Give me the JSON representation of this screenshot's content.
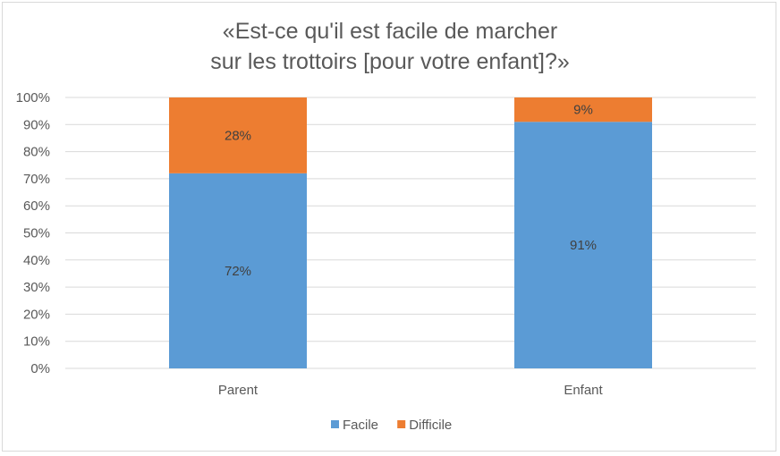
{
  "chart_data": {
    "type": "bar",
    "stacked": true,
    "percent": true,
    "title_lines": [
      "«Est-ce qu'il est facile de marcher",
      "sur les trottoirs [pour votre enfant]?»"
    ],
    "categories": [
      "Parent",
      "Enfant"
    ],
    "series": [
      {
        "name": "Facile",
        "values": [
          72,
          91
        ],
        "color": "#5b9bd5",
        "labels": [
          "72%",
          "91%"
        ]
      },
      {
        "name": "Difficile",
        "values": [
          28,
          9
        ],
        "color": "#ed7d31",
        "labels": [
          "28%",
          "9%"
        ]
      }
    ],
    "ylim": [
      0,
      100
    ],
    "yticks": [
      "0%",
      "10%",
      "20%",
      "30%",
      "40%",
      "50%",
      "60%",
      "70%",
      "80%",
      "90%",
      "100%"
    ],
    "grid": true,
    "legend_position": "bottom",
    "gridline_color": "#d9d9d9"
  }
}
